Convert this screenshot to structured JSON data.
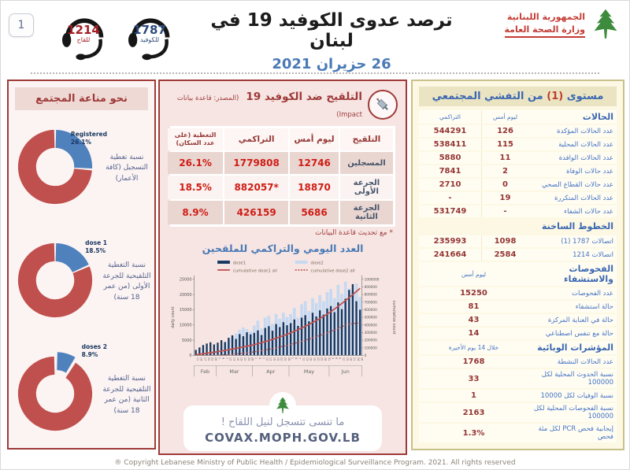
{
  "page": {
    "number": "1",
    "footer": "® Copyright Lebanese Ministry of Public Health / Epidemiological Surveillance Program. 2021. All rights reserved"
  },
  "header": {
    "title": "ترصد عدوى الكوفيد 19 في لبنان",
    "date": "26 حزيران 2021",
    "hotline_vaccine": {
      "number": "1214",
      "label": "للقاح"
    },
    "hotline_covid": {
      "number": "1787",
      "label": "للكوفيد"
    },
    "ministry": {
      "line1": "الجمهورية اللبنانية",
      "line2": "وزارة الصحة العامة"
    }
  },
  "immunity_panel": {
    "title": "نحو مناعة المجتمع"
  },
  "vaccination_panel": {
    "title": "التلقيح ضد الكوفيد 19",
    "source": "(المصدر: قاعدة بيانات Impact)",
    "table": {
      "headers": [
        "التلقيح",
        "ليوم أمس",
        "التراكمي",
        "التغطية (على عدد السكان)"
      ],
      "rows": [
        {
          "label": "المسجلين",
          "yesterday": "12746",
          "cumulative": "1779808",
          "coverage": "26.1%"
        },
        {
          "label": "الجرعة الأولى",
          "yesterday": "18870",
          "cumulative": "*882057",
          "coverage": "18.5%"
        },
        {
          "label": "الجرعة الثانية",
          "yesterday": "5686",
          "cumulative": "426159",
          "coverage": "8.9%"
        }
      ]
    },
    "footnote": "* مع تحديث قاعدة البيانات",
    "covax": {
      "line1": "ما تنسى تتسجل لنيل اللقاح !",
      "line2": "COVAX.MOPH.GOV.LB"
    }
  },
  "outbreak_panel": {
    "title_right": "مستوى",
    "title_num": "(1)",
    "title_left": "من التفشي المجتمعي",
    "rows": [
      {
        "t": "hc",
        "label": "الحالات",
        "v1": "ليوم أمس",
        "v2": "التراكمي"
      },
      {
        "t": "r",
        "label": "عدد الحالات المؤكدة",
        "v1": "126",
        "v2": "544291"
      },
      {
        "t": "r",
        "label": "عدد الحالات المحلية",
        "v1": "115",
        "v2": "538411"
      },
      {
        "t": "r",
        "label": "عدد الحالات الوافدة",
        "v1": "11",
        "v2": "5880"
      },
      {
        "t": "r",
        "label": "عدد حالات الوفاة",
        "v1": "2",
        "v2": "7841"
      },
      {
        "t": "r",
        "label": "عدد حالات القطاع الصحي",
        "v1": "0",
        "v2": "2710"
      },
      {
        "t": "r",
        "label": "عدد الحالات المتكررة",
        "v1": "19",
        "v2": "-"
      },
      {
        "t": "r",
        "label": "عدد حالات الشفاء",
        "v1": "-",
        "v2": "531749"
      },
      {
        "t": "s",
        "label": "الخطوط الساخنة"
      },
      {
        "t": "r",
        "label": "اتصالات 1787 (1)",
        "v1": "1098",
        "v2": "235993"
      },
      {
        "t": "r",
        "label": "اتصالات 1214",
        "v1": "2584",
        "v2": "241664"
      },
      {
        "t": "hs",
        "label": "الفحوصات والاستشفاء",
        "v": "ليوم أمس"
      },
      {
        "t": "rs",
        "label": "عدد الفحوصات",
        "v": "15250"
      },
      {
        "t": "rs",
        "label": "حالة استشفاء",
        "v": "81"
      },
      {
        "t": "rs",
        "label": "حالة في العناية المركزة",
        "v": "43"
      },
      {
        "t": "rs",
        "label": "حالة مع تنفس اصطناعي",
        "v": "14"
      },
      {
        "t": "hs",
        "label": "المؤشرات الوبائية",
        "v": "خلال 14 يوم الأخيرة"
      },
      {
        "t": "rs",
        "label": "عدد الحالات النشطة",
        "v": "1768"
      },
      {
        "t": "rs",
        "label": "نسبة الحدوث المحلية لكل 100000",
        "v": "33"
      },
      {
        "t": "rs",
        "label": "نسبة الوفيات لكل 10000",
        "v": "1"
      },
      {
        "t": "rs",
        "label": "نسبة الفحوصات المحلية لكل 100000",
        "v": "2163"
      },
      {
        "t": "rs",
        "label": "إيجابية فحص PCR لكل مئة فحص",
        "v": "1.3%"
      }
    ]
  },
  "chart_data": [
    {
      "type": "bar",
      "title": "العدد اليومي والتراكمي للملقحين",
      "ylabel_left": "daily count",
      "ylabel_right": "cumulative count",
      "ylim_left": [
        0,
        25000
      ],
      "ylim_right": [
        0,
        1000000
      ],
      "yticks_left": [
        0,
        5000,
        10000,
        15000,
        20000,
        25000
      ],
      "yticks_right": [
        0,
        100000,
        200000,
        300000,
        400000,
        500000,
        600000,
        700000,
        800000,
        900000,
        1000000
      ],
      "months": [
        {
          "label": "Feb",
          "count": 6
        },
        {
          "label": "Mar",
          "count": 10
        },
        {
          "label": "Apr",
          "count": 10
        },
        {
          "label": "May",
          "count": 11
        },
        {
          "label": "Jun",
          "count": 9
        }
      ],
      "x_day_labels": [
        "11",
        "14",
        "17",
        "20",
        "23",
        "26",
        "1",
        "4",
        "7",
        "10",
        "13",
        "16",
        "19",
        "22",
        "25",
        "28",
        "1",
        "4",
        "7",
        "10",
        "13",
        "16",
        "19",
        "22",
        "25",
        "28",
        "1",
        "4",
        "7",
        "10",
        "13",
        "16",
        "19",
        "22",
        "25",
        "28",
        "31",
        "3",
        "6",
        "9",
        "12",
        "15",
        "18",
        "21",
        "24",
        "26"
      ],
      "series": [
        {
          "name": "dose1",
          "kind": "bar",
          "color": "#17375e",
          "values": [
            1800,
            2600,
            3400,
            3900,
            4300,
            3600,
            4200,
            5000,
            4400,
            5800,
            6600,
            5400,
            7000,
            6300,
            7600,
            6900,
            7400,
            8200,
            6700,
            9000,
            9600,
            8100,
            10300,
            9300,
            10900,
            9900,
            10600,
            11800,
            9700,
            12400,
            13200,
            11200,
            14000,
            12800,
            14800,
            13400,
            15400,
            16200,
            14200,
            17400,
            15200,
            18600,
            21500,
            23400,
            17800,
            15000
          ]
        },
        {
          "name": "dose2",
          "kind": "bar",
          "color": "#c6d9f1",
          "values": [
            0,
            100,
            300,
            500,
            700,
            900,
            1600,
            2800,
            3800,
            5000,
            6200,
            7200,
            8400,
            9200,
            8600,
            7800,
            9800,
            11400,
            8800,
            12400,
            13000,
            10400,
            13600,
            12000,
            14000,
            12600,
            13600,
            15600,
            12400,
            16800,
            17800,
            14600,
            18800,
            17200,
            19800,
            17800,
            20800,
            21800,
            18800,
            23200,
            20200,
            24200,
            22000,
            21000,
            23600,
            19200
          ]
        },
        {
          "name": "cumulative dose1 all",
          "kind": "line",
          "style": "solid",
          "color": "#c0504d",
          "axis": "right",
          "values": [
            8000,
            15000,
            22000,
            29000,
            36000,
            42000,
            50000,
            58000,
            66000,
            75000,
            84000,
            93000,
            103000,
            112000,
            121000,
            130000,
            142000,
            155000,
            168000,
            182000,
            196000,
            211000,
            227000,
            243000,
            260000,
            278000,
            298000,
            318000,
            339000,
            361000,
            384000,
            408000,
            433000,
            459000,
            486000,
            514000,
            543000,
            576000,
            610000,
            646000,
            683000,
            721000,
            760000,
            800000,
            841000,
            882057
          ]
        },
        {
          "name": "cumulative dose2 all",
          "kind": "line",
          "style": "dotted",
          "color": "#c0504d",
          "axis": "right",
          "values": [
            200,
            500,
            900,
            1400,
            2000,
            2700,
            4000,
            6000,
            8500,
            11500,
            15000,
            19000,
            23500,
            28500,
            34000,
            40000,
            47000,
            54500,
            62500,
            71000,
            80000,
            89500,
            99500,
            110000,
            121000,
            132500,
            145000,
            158000,
            171500,
            185500,
            200000,
            215000,
            230500,
            246500,
            263000,
            280000,
            297500,
            316000,
            335000,
            355000,
            376000,
            398000,
            410000,
            418000,
            423000,
            426159
          ]
        }
      ]
    },
    {
      "type": "pie",
      "donut": true,
      "title": "نسبة تغطية التسجيل (كافة الأعمار)",
      "labels": [
        "Registered",
        "rest"
      ],
      "values": [
        26.1,
        73.9
      ],
      "colors": [
        "#4f81bd",
        "#c0504d"
      ],
      "exploded": false
    },
    {
      "type": "pie",
      "donut": true,
      "title": "نسبة التغطية التلقيحية للجرعة الأولى (من عمر 18 سنة)",
      "labels": [
        "1 dose",
        "rest"
      ],
      "values": [
        18.5,
        81.5
      ],
      "colors": [
        "#4f81bd",
        "#c0504d"
      ],
      "exploded": false
    },
    {
      "type": "pie",
      "donut": true,
      "title": "نسبة التغطية التلقيحية للجرعة الثانية (من عمر 18 سنة)",
      "labels": [
        "2 doses",
        "rest"
      ],
      "values": [
        8.9,
        91.1
      ],
      "colors": [
        "#4f81bd",
        "#c0504d"
      ],
      "exploded": true
    }
  ]
}
